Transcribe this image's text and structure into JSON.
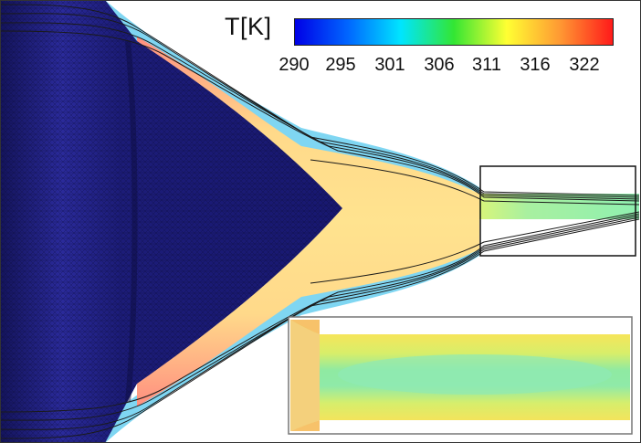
{
  "colorbar": {
    "title": "T[K]",
    "ticks": [
      "290",
      "295",
      "301",
      "306",
      "311",
      "316",
      "322"
    ],
    "min": 290,
    "max": 322,
    "colors": [
      "#0000e6",
      "#0066ff",
      "#00e5ff",
      "#33e633",
      "#ffff33",
      "#ff9933",
      "#ff1a1a"
    ]
  },
  "colors": {
    "solid_mesh": "#1a1a78",
    "inflow_fluid": "#7fd6f2",
    "hot_fluid": "#ff9a8a",
    "core_fluid": "#ffe08a",
    "outlet_fluid": "#8ff0b0",
    "streamline": "#1a1a1a",
    "highlight_box": "#111111"
  }
}
